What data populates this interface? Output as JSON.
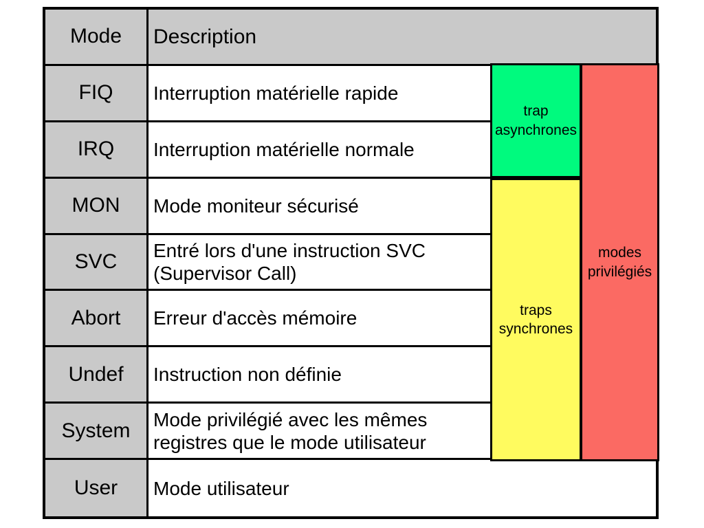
{
  "table": {
    "header": {
      "mode": "Mode",
      "description": "Description"
    },
    "rows": [
      {
        "mode": "FIQ",
        "description": "Interruption matérielle rapide"
      },
      {
        "mode": "IRQ",
        "description": "Interruption matérielle normale"
      },
      {
        "mode": "MON",
        "description": "Mode moniteur sécurisé"
      },
      {
        "mode": "SVC",
        "description": "Entré lors d'une instruction SVC (Supervisor Call)"
      },
      {
        "mode": "Abort",
        "description": "Erreur d'accès mémoire"
      },
      {
        "mode": "Undef",
        "description": "Instruction non définie"
      },
      {
        "mode": "System",
        "description": "Mode privilégié avec les mêmes registres que le mode utilisateur"
      },
      {
        "mode": "User",
        "description": "Mode utilisateur"
      }
    ]
  },
  "overlays": {
    "async_traps": {
      "label": "trap asynchrones",
      "color": "#00fa7e",
      "covers_modes": [
        "FIQ",
        "IRQ"
      ]
    },
    "sync_traps": {
      "label": "traps synchrones",
      "color": "#fffb5f",
      "covers_modes": [
        "MON",
        "SVC",
        "Abort",
        "Undef",
        "System"
      ]
    },
    "privileged_modes": {
      "label": "modes privilégiés",
      "color": "#fb6a63",
      "covers_modes": [
        "FIQ",
        "IRQ",
        "MON",
        "SVC",
        "Abort",
        "Undef",
        "System"
      ]
    }
  },
  "colors": {
    "header_background": "#c9c9c9",
    "mode_column_background": "#c9c9c9",
    "cell_background": "#ffffff",
    "border": "#000000"
  }
}
